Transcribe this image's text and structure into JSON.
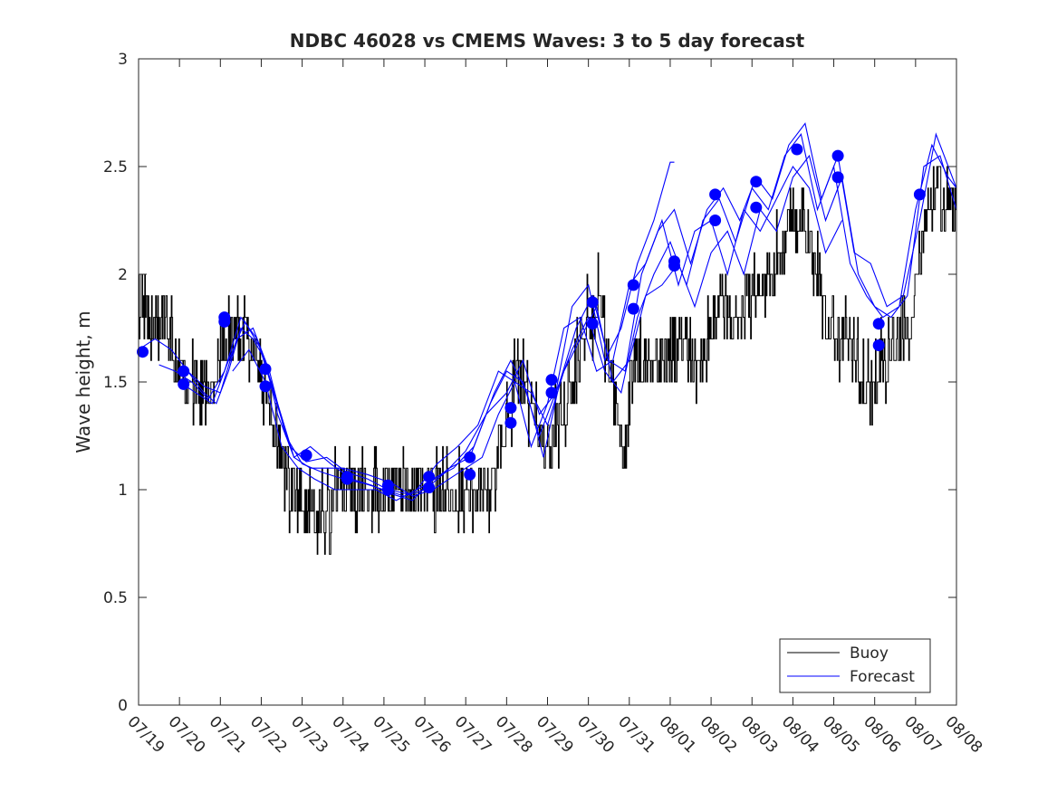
{
  "chart_data": {
    "type": "line",
    "title": "NDBC 46028 vs CMEMS Waves: 3 to 5 day forecast",
    "xlabel": "",
    "ylabel": "Wave height, m",
    "xlim": [
      0,
      20
    ],
    "ylim": [
      0,
      3
    ],
    "yticks": [
      0,
      0.5,
      1,
      1.5,
      2,
      2.5,
      3
    ],
    "ytick_labels": [
      "0",
      "0.5",
      "1",
      "1.5",
      "2",
      "2.5",
      "3"
    ],
    "xtick_labels": [
      "07/19",
      "07/20",
      "07/21",
      "07/22",
      "07/23",
      "07/24",
      "07/25",
      "07/26",
      "07/27",
      "07/28",
      "07/29",
      "07/30",
      "07/31",
      "08/01",
      "08/02",
      "08/03",
      "08/04",
      "08/05",
      "08/06",
      "08/07",
      "08/08"
    ],
    "x_unit": "days from 07/19",
    "grid": false,
    "legend": {
      "position": "bottom-right",
      "entries": [
        "Buoy",
        "Forecast"
      ]
    },
    "colors": {
      "buoy": "#000000",
      "forecast": "#0000ff",
      "markers": "#0000ff"
    },
    "buoy": {
      "name": "Buoy",
      "points": [
        [
          0,
          1.9
        ],
        [
          0.4,
          1.8
        ],
        [
          0.7,
          1.75
        ],
        [
          1,
          1.5
        ],
        [
          1.5,
          1.45
        ],
        [
          1.8,
          1.5
        ],
        [
          2,
          1.65
        ],
        [
          2.4,
          1.75
        ],
        [
          2.8,
          1.6
        ],
        [
          3.1,
          1.45
        ],
        [
          3.3,
          1.3
        ],
        [
          3.6,
          1.1
        ],
        [
          3.8,
          0.95
        ],
        [
          4,
          0.95
        ],
        [
          4.4,
          0.85
        ],
        [
          4.8,
          0.95
        ],
        [
          5.5,
          0.95
        ],
        [
          6,
          0.95
        ],
        [
          6.5,
          0.95
        ],
        [
          7,
          0.95
        ],
        [
          7.5,
          0.95
        ],
        [
          8,
          0.95
        ],
        [
          8.4,
          0.95
        ],
        [
          8.7,
          1.1
        ],
        [
          9,
          1.35
        ],
        [
          9.3,
          1.55
        ],
        [
          9.5,
          1.45
        ],
        [
          9.8,
          1.3
        ],
        [
          10,
          1.2
        ],
        [
          10.3,
          1.35
        ],
        [
          10.6,
          1.5
        ],
        [
          11,
          1.8
        ],
        [
          11.3,
          1.9
        ],
        [
          11.6,
          1.4
        ],
        [
          11.9,
          1.2
        ],
        [
          12.1,
          1.6
        ],
        [
          12.4,
          1.6
        ],
        [
          12.7,
          1.55
        ],
        [
          13,
          1.6
        ],
        [
          13.3,
          1.7
        ],
        [
          13.7,
          1.55
        ],
        [
          14,
          1.8
        ],
        [
          14.3,
          1.9
        ],
        [
          14.6,
          1.8
        ],
        [
          15,
          1.95
        ],
        [
          15.5,
          2.0
        ],
        [
          15.8,
          2.15
        ],
        [
          16,
          2.3
        ],
        [
          16.3,
          2.25
        ],
        [
          16.6,
          2.0
        ],
        [
          16.8,
          1.8
        ],
        [
          17,
          1.75
        ],
        [
          17.4,
          1.65
        ],
        [
          17.7,
          1.5
        ],
        [
          18,
          1.5
        ],
        [
          18.3,
          1.65
        ],
        [
          18.6,
          1.7
        ],
        [
          18.9,
          1.85
        ],
        [
          19.1,
          2.1
        ],
        [
          19.3,
          2.4
        ],
        [
          19.6,
          2.35
        ],
        [
          20,
          2.3
        ]
      ]
    },
    "forecast": [
      {
        "name": "Forecast",
        "points": [
          [
            0,
            1.65
          ],
          [
            0.4,
            1.7
          ],
          [
            0.8,
            1.65
          ],
          [
            1.2,
            1.55
          ],
          [
            1.6,
            1.45
          ],
          [
            1.9,
            1.4
          ],
          [
            2.2,
            1.55
          ],
          [
            2.5,
            1.75
          ],
          [
            2.8,
            1.7
          ],
          [
            3.1,
            1.6
          ],
          [
            3.4,
            1.35
          ],
          [
            3.8,
            1.15
          ],
          [
            4.2,
            1.1
          ],
          [
            4.6,
            1.1
          ],
          [
            5,
            1.1
          ],
          [
            5.6,
            1.07
          ],
          [
            6.2,
            1.03
          ],
          [
            6.7,
            0.97
          ],
          [
            7.2,
            1.0
          ],
          [
            7.6,
            1.05
          ],
          [
            8,
            1.1
          ],
          [
            8.4,
            1.15
          ],
          [
            8.8,
            1.35
          ],
          [
            9.2,
            1.5
          ],
          [
            9.6,
            1.45
          ],
          [
            10,
            1.3
          ],
          [
            10.4,
            1.55
          ],
          [
            10.8,
            1.7
          ],
          [
            11.2,
            1.85
          ],
          [
            11.6,
            1.5
          ],
          [
            12,
            1.6
          ],
          [
            12.4,
            1.9
          ],
          [
            12.8,
            1.95
          ],
          [
            13.2,
            2.05
          ],
          [
            13.6,
            1.85
          ],
          [
            14,
            2.1
          ],
          [
            14.4,
            2.2
          ],
          [
            14.8,
            2.0
          ],
          [
            15.2,
            2.3
          ],
          [
            15.6,
            2.2
          ],
          [
            16,
            2.45
          ],
          [
            16.4,
            2.55
          ],
          [
            16.8,
            2.25
          ],
          [
            17.2,
            2.45
          ],
          [
            17.6,
            2.0
          ],
          [
            18,
            1.85
          ],
          [
            18.4,
            1.8
          ],
          [
            18.8,
            1.9
          ],
          [
            19.2,
            2.5
          ],
          [
            19.6,
            2.55
          ],
          [
            20,
            2.3
          ]
        ]
      },
      {
        "name": "Forecast",
        "points": [
          [
            0.5,
            1.58
          ],
          [
            0.9,
            1.55
          ],
          [
            1.3,
            1.5
          ],
          [
            1.7,
            1.42
          ],
          [
            2.1,
            1.55
          ],
          [
            2.5,
            1.8
          ],
          [
            2.9,
            1.7
          ],
          [
            3.3,
            1.45
          ],
          [
            3.7,
            1.2
          ],
          [
            4.1,
            1.13
          ],
          [
            4.6,
            1.15
          ],
          [
            5.1,
            1.08
          ],
          [
            5.6,
            1.05
          ],
          [
            6.1,
            1.0
          ],
          [
            6.6,
            0.98
          ],
          [
            7.1,
            1.03
          ],
          [
            7.6,
            1.1
          ],
          [
            8.1,
            1.15
          ],
          [
            8.6,
            1.4
          ],
          [
            9,
            1.55
          ],
          [
            9.4,
            1.5
          ],
          [
            9.8,
            1.25
          ],
          [
            10.2,
            1.45
          ],
          [
            10.6,
            1.65
          ],
          [
            11,
            1.8
          ],
          [
            11.4,
            1.55
          ],
          [
            11.8,
            1.45
          ],
          [
            12.2,
            1.8
          ],
          [
            12.6,
            2.0
          ],
          [
            13,
            2.15
          ],
          [
            13.4,
            1.95
          ],
          [
            13.8,
            2.25
          ],
          [
            14.2,
            2.35
          ],
          [
            14.6,
            2.15
          ],
          [
            15,
            2.4
          ],
          [
            15.4,
            2.3
          ],
          [
            15.8,
            2.55
          ],
          [
            16.2,
            2.65
          ],
          [
            16.6,
            2.3
          ],
          [
            17,
            2.5
          ],
          [
            17.4,
            2.05
          ],
          [
            17.8,
            1.9
          ],
          [
            18.2,
            1.8
          ],
          [
            18.6,
            1.85
          ],
          [
            19,
            2.3
          ],
          [
            19.4,
            2.6
          ],
          [
            19.8,
            2.45
          ],
          [
            20,
            2.4
          ]
        ]
      },
      {
        "name": "Forecast",
        "points": [
          [
            1,
            1.5
          ],
          [
            1.4,
            1.45
          ],
          [
            1.8,
            1.4
          ],
          [
            2.2,
            1.6
          ],
          [
            2.6,
            1.78
          ],
          [
            3,
            1.65
          ],
          [
            3.4,
            1.4
          ],
          [
            3.8,
            1.15
          ],
          [
            4.2,
            1.2
          ],
          [
            4.7,
            1.12
          ],
          [
            5.2,
            1.05
          ],
          [
            5.7,
            1.02
          ],
          [
            6.2,
            0.98
          ],
          [
            6.7,
            0.95
          ],
          [
            7.2,
            1.05
          ],
          [
            7.7,
            1.1
          ],
          [
            8.2,
            1.2
          ],
          [
            8.7,
            1.45
          ],
          [
            9.1,
            1.6
          ],
          [
            9.5,
            1.45
          ],
          [
            9.9,
            1.15
          ],
          [
            10.3,
            1.5
          ],
          [
            10.7,
            1.75
          ],
          [
            11.1,
            1.9
          ],
          [
            11.5,
            1.6
          ],
          [
            11.9,
            1.55
          ],
          [
            12.3,
            2.0
          ],
          [
            12.7,
            2.2
          ],
          [
            13.1,
            2.3
          ],
          [
            13.5,
            2.05
          ],
          [
            13.9,
            2.3
          ],
          [
            14.3,
            2.4
          ],
          [
            14.7,
            2.25
          ],
          [
            15.1,
            2.45
          ],
          [
            15.5,
            2.35
          ],
          [
            15.9,
            2.6
          ],
          [
            16.3,
            2.7
          ],
          [
            16.7,
            2.35
          ],
          [
            17.1,
            2.55
          ],
          [
            17.5,
            2.1
          ],
          [
            17.9,
            2.05
          ],
          [
            18.3,
            1.85
          ],
          [
            18.7,
            1.9
          ],
          [
            19.1,
            2.25
          ],
          [
            19.5,
            2.65
          ],
          [
            19.9,
            2.45
          ],
          [
            20,
            2.4
          ]
        ]
      },
      {
        "name": "Forecast",
        "points": [
          [
            1.2,
            1.55
          ],
          [
            1.6,
            1.48
          ],
          [
            2,
            1.45
          ],
          [
            2.4,
            1.7
          ],
          [
            2.8,
            1.75
          ],
          [
            3.2,
            1.55
          ],
          [
            3.6,
            1.25
          ],
          [
            4,
            1.12
          ],
          [
            4.5,
            1.08
          ],
          [
            5,
            1.05
          ],
          [
            5.5,
            1.03
          ],
          [
            6,
            1.0
          ],
          [
            6.5,
            0.97
          ],
          [
            7,
            1.0
          ],
          [
            7.5,
            1.08
          ],
          [
            8,
            1.18
          ],
          [
            8.5,
            1.35
          ],
          [
            9,
            1.45
          ],
          [
            9.4,
            1.6
          ],
          [
            9.8,
            1.35
          ],
          [
            10.2,
            1.45
          ],
          [
            10.6,
            1.85
          ],
          [
            11,
            1.95
          ],
          [
            11.4,
            1.6
          ],
          [
            11.8,
            1.75
          ],
          [
            12.2,
            2.05
          ],
          [
            12.6,
            2.25
          ],
          [
            13,
            2.52
          ],
          [
            13.1,
            2.52
          ]
        ]
      },
      {
        "name": "Forecast",
        "points": [
          [
            2.3,
            1.55
          ],
          [
            2.7,
            1.65
          ],
          [
            3.1,
            1.5
          ],
          [
            3.5,
            1.2
          ],
          [
            3.9,
            1.1
          ],
          [
            4.3,
            1.05
          ],
          [
            4.8,
            1.0
          ],
          [
            5.3,
            1.0
          ],
          [
            5.8,
            1.0
          ],
          [
            6.3,
            0.95
          ],
          [
            6.8,
            1.0
          ],
          [
            7.3,
            1.12
          ],
          [
            7.8,
            1.2
          ],
          [
            8.3,
            1.3
          ],
          [
            8.8,
            1.55
          ],
          [
            9.2,
            1.5
          ],
          [
            9.6,
            1.2
          ],
          [
            10,
            1.4
          ],
          [
            10.4,
            1.75
          ],
          [
            10.8,
            1.8
          ],
          [
            11.2,
            1.55
          ],
          [
            11.6,
            1.6
          ],
          [
            12,
            1.95
          ],
          [
            12.4,
            2.05
          ],
          [
            12.8,
            2.25
          ],
          [
            13.2,
            1.95
          ],
          [
            13.6,
            2.2
          ],
          [
            14,
            2.25
          ],
          [
            14.4,
            2.0
          ],
          [
            14.8,
            2.3
          ],
          [
            15.2,
            2.2
          ],
          [
            15.6,
            2.35
          ],
          [
            16,
            2.5
          ],
          [
            16.4,
            2.4
          ],
          [
            16.8,
            2.1
          ],
          [
            17.2,
            2.25
          ]
        ]
      }
    ],
    "markers": [
      [
        0.1,
        1.64
      ],
      [
        1.1,
        1.55
      ],
      [
        1.1,
        1.49
      ],
      [
        2.1,
        1.8
      ],
      [
        2.1,
        1.78
      ],
      [
        3.1,
        1.56
      ],
      [
        3.1,
        1.48
      ],
      [
        4.1,
        1.16
      ],
      [
        5.1,
        1.06
      ],
      [
        5.1,
        1.05
      ],
      [
        6.1,
        1.02
      ],
      [
        6.1,
        1.0
      ],
      [
        7.1,
        1.06
      ],
      [
        7.1,
        1.01
      ],
      [
        8.1,
        1.15
      ],
      [
        8.1,
        1.07
      ],
      [
        9.1,
        1.38
      ],
      [
        9.1,
        1.31
      ],
      [
        10.1,
        1.51
      ],
      [
        10.1,
        1.45
      ],
      [
        11.1,
        1.87
      ],
      [
        11.1,
        1.77
      ],
      [
        12.1,
        1.95
      ],
      [
        12.1,
        1.84
      ],
      [
        13.1,
        2.06
      ],
      [
        13.1,
        2.04
      ],
      [
        14.1,
        2.37
      ],
      [
        14.1,
        2.25
      ],
      [
        15.1,
        2.43
      ],
      [
        15.1,
        2.31
      ],
      [
        16.1,
        2.58
      ],
      [
        17.1,
        2.55
      ],
      [
        17.1,
        2.45
      ],
      [
        18.1,
        1.77
      ],
      [
        18.1,
        1.67
      ],
      [
        19.1,
        2.37
      ]
    ]
  }
}
